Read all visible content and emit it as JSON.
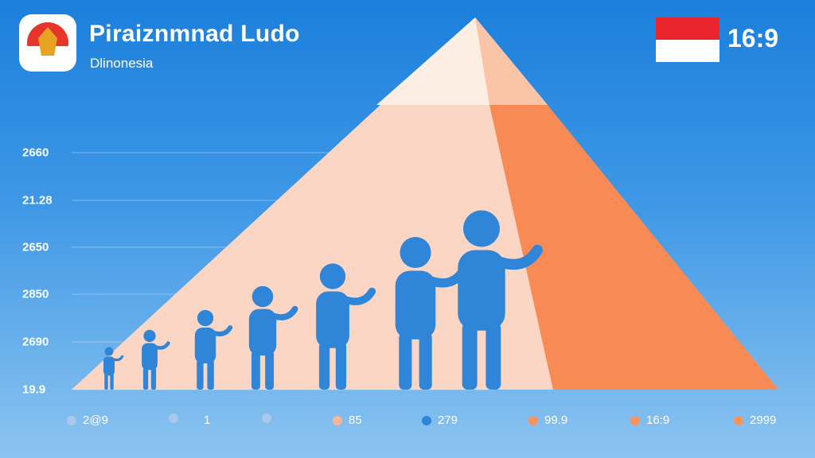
{
  "header": {
    "title": "Piraiznmnad Ludo",
    "subtitle": "Dlinonesia",
    "badge": "16:9"
  },
  "axis_labels": [
    "2660",
    "21.28",
    "2650",
    "2850",
    "2690",
    "19.9"
  ],
  "legend": [
    {
      "label": "2@9"
    },
    {
      "label": "1"
    },
    {
      "label": "85"
    },
    {
      "label": "279"
    },
    {
      "label": "99.9"
    },
    {
      "label": "16:9"
    },
    {
      "label": "2999"
    }
  ]
}
